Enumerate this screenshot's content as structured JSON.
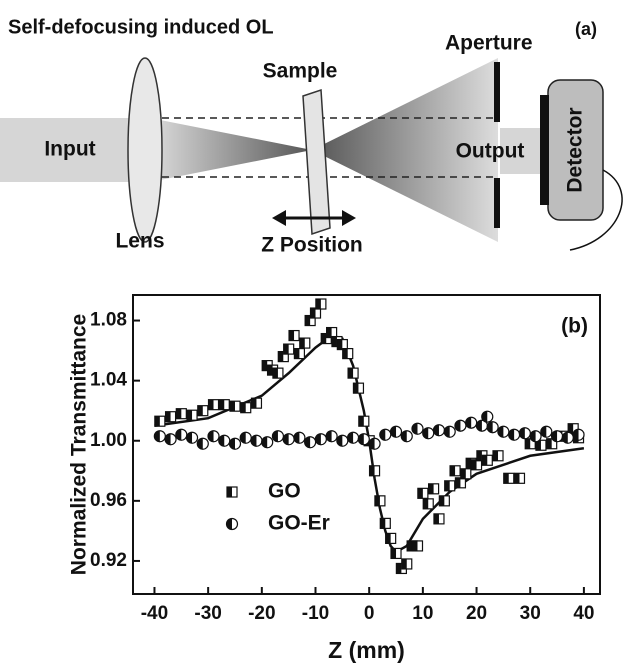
{
  "diagram": {
    "title": "Self-defocusing induced OL",
    "panel": "(a)",
    "aperture": "Aperture",
    "sample": "Sample",
    "input": "Input",
    "output": "Output",
    "detector": "Detector",
    "lens": "Lens",
    "z_position": "Z Position"
  },
  "chart_data": {
    "type": "scatter",
    "panel": "(b)",
    "x_label": "Z (mm)",
    "y_label": "Normalized Transmittance",
    "xlim": [
      -44,
      43
    ],
    "xticks": [
      -40,
      -30,
      -20,
      -10,
      0,
      10,
      20,
      30,
      40
    ],
    "ylim": [
      0.898,
      1.097
    ],
    "yticks": [
      0.92,
      0.96,
      {
        "value": 1,
        "label": "1.00"
      },
      1.04,
      1.08
    ],
    "legend": "lower left",
    "series": [
      {
        "name": "GO",
        "marker": "square",
        "color": "#111111",
        "x": [
          -39,
          -37,
          -35,
          -33,
          -31,
          -29,
          -27,
          -25,
          -23,
          -21,
          -19,
          -18,
          -17,
          -16,
          -15,
          -14,
          -13,
          -12,
          -11,
          -10,
          -9,
          -8,
          -7,
          -6,
          -5,
          -4,
          -3,
          -2,
          -1,
          0,
          1,
          2,
          3,
          4,
          5,
          6,
          7,
          8,
          9,
          10,
          11,
          12,
          13,
          14,
          15,
          16,
          17,
          18,
          19,
          20,
          21,
          22,
          24,
          26,
          28,
          30,
          32,
          34,
          36,
          38,
          39
        ],
        "values": [
          1.013,
          1.016,
          1.018,
          1.017,
          1.02,
          1.024,
          1.024,
          1.023,
          1.022,
          1.025,
          1.05,
          1.047,
          1.045,
          1.056,
          1.061,
          1.07,
          1.058,
          1.065,
          1.08,
          1.085,
          1.091,
          1.068,
          1.072,
          1.066,
          1.064,
          1.058,
          1.045,
          1.035,
          1.013,
          1.0,
          0.98,
          0.96,
          0.945,
          0.935,
          0.925,
          0.915,
          0.918,
          0.93,
          0.93,
          0.965,
          0.958,
          0.968,
          0.948,
          0.96,
          0.97,
          0.98,
          0.972,
          0.978,
          0.985,
          0.984,
          0.99,
          0.987,
          0.99,
          0.975,
          0.975,
          0.998,
          0.997,
          0.998,
          1.003,
          1.008,
          1.002
        ]
      },
      {
        "name": "GO-Er",
        "marker": "circle",
        "color": "#111111",
        "x": [
          -39,
          -37,
          -35,
          -33,
          -31,
          -29,
          -27,
          -25,
          -23,
          -21,
          -19,
          -17,
          -15,
          -13,
          -11,
          -9,
          -7,
          -5,
          -3,
          -1,
          1,
          3,
          5,
          7,
          9,
          11,
          13,
          15,
          17,
          19,
          21,
          22,
          23,
          25,
          27,
          29,
          31,
          33,
          35,
          37,
          39
        ],
        "values": [
          1.003,
          1.001,
          1.004,
          1.002,
          0.998,
          1.003,
          1.0,
          0.998,
          1.002,
          1.0,
          0.999,
          1.003,
          1.001,
          1.002,
          0.999,
          1.001,
          1.003,
          1.0,
          1.002,
          1.001,
          0.998,
          1.004,
          1.006,
          1.003,
          1.008,
          1.005,
          1.007,
          1.006,
          1.01,
          1.012,
          1.01,
          1.016,
          1.009,
          1.006,
          1.004,
          1.005,
          1.003,
          1.006,
          1.003,
          1.002,
          1.004
        ]
      }
    ],
    "fit": {
      "x": [
        -40,
        -30,
        -20,
        -15,
        -10,
        -7,
        -5,
        -3,
        -1,
        0,
        1,
        2,
        3,
        4,
        5,
        7,
        10,
        15,
        20,
        30,
        40
      ],
      "values": [
        1.01,
        1.015,
        1.03,
        1.045,
        1.062,
        1.07,
        1.068,
        1.05,
        1.02,
        1.0,
        0.975,
        0.955,
        0.94,
        0.93,
        0.926,
        0.93,
        0.948,
        0.966,
        0.978,
        0.99,
        0.995
      ]
    }
  }
}
